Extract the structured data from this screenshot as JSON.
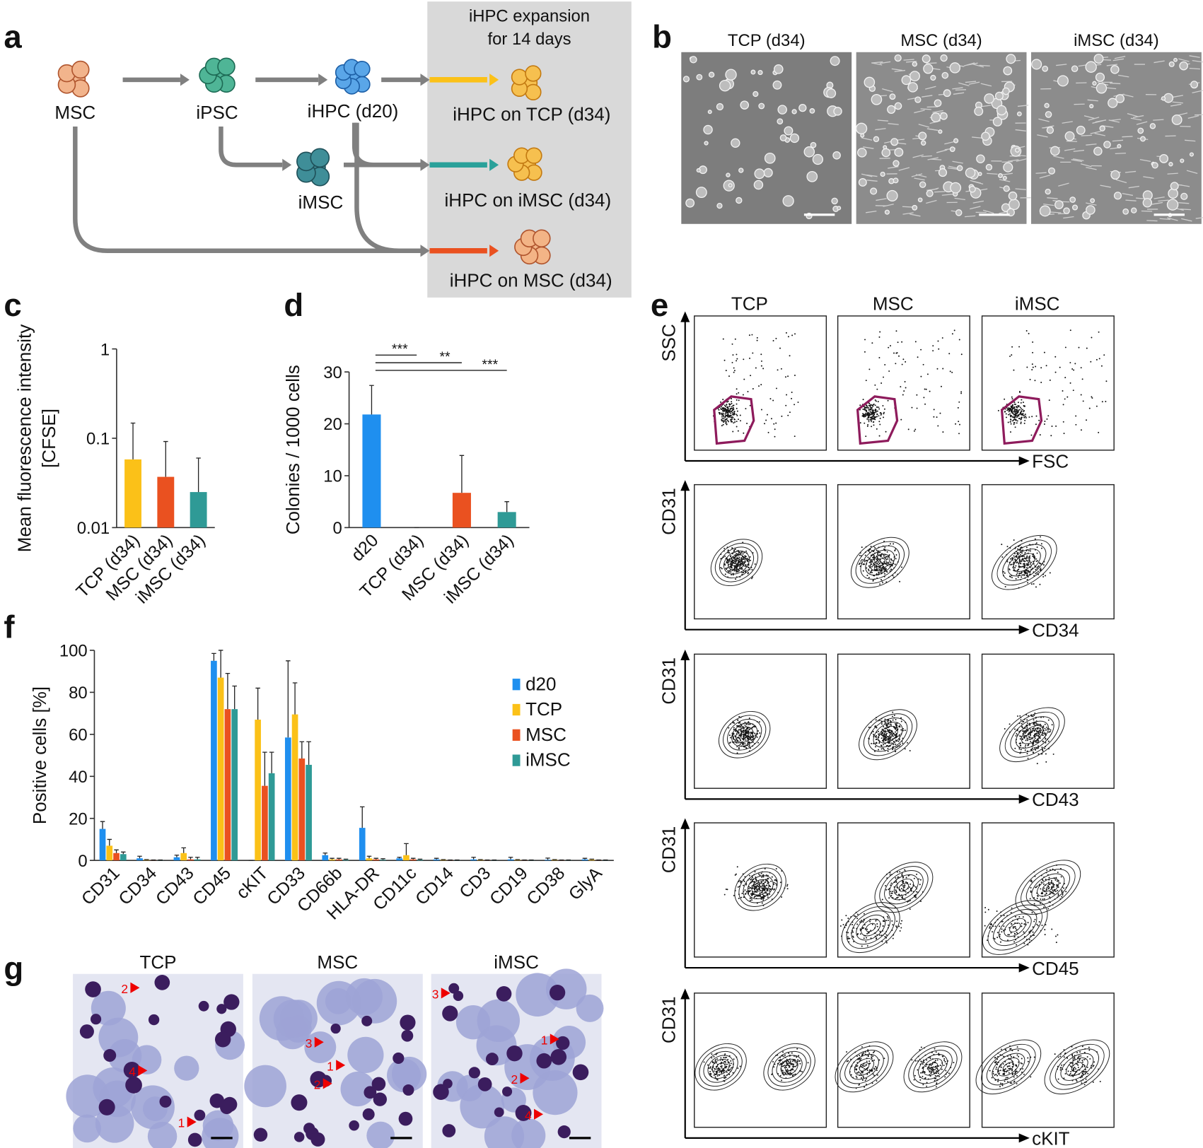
{
  "panel_labels": [
    "a",
    "b",
    "c",
    "d",
    "e",
    "f",
    "g"
  ],
  "diagram": {
    "box_title": [
      "iHPC expansion",
      "for 14 days"
    ],
    "nodes": [
      "MSC",
      "iPSC",
      "iHPC (d20)",
      "iMSC",
      "iHPC on TCP (d34)",
      "iHPC on iMSC (d34)",
      "iHPC on MSC (d34)"
    ]
  },
  "micrographs": {
    "titles": [
      "TCP (d34)",
      "MSC (d34)",
      "iMSC (d34)"
    ]
  },
  "flow": {
    "columns": [
      "TCP",
      "MSC",
      "iMSC"
    ],
    "rows": [
      {
        "y": "SSC",
        "x": "FSC"
      },
      {
        "y": "CD31",
        "x": "CD34"
      },
      {
        "y": "CD31",
        "x": "CD43"
      },
      {
        "y": "CD31",
        "x": "CD45"
      },
      {
        "y": "CD31",
        "x": "cKIT"
      }
    ]
  },
  "chart_data": [
    {
      "type": "bar",
      "ylabel": [
        "Mean fluorescence intensity",
        "[CFSE]"
      ],
      "log_scale": true,
      "categories": [
        "TCP (d34)",
        "MSC (d34)",
        "iMSC (d34)"
      ],
      "values": [
        0.058,
        0.037,
        0.025
      ],
      "errors": [
        0.09,
        0.055,
        0.035
      ],
      "colors": [
        "#fbc118",
        "#ea5120",
        "#2f9a96"
      ],
      "ylim": [
        0.01,
        1
      ],
      "yticks": [
        0.01,
        0.1,
        1
      ]
    },
    {
      "type": "bar",
      "ylabel": [
        "Colonies / 1000 cells"
      ],
      "categories": [
        "d20",
        "TCP (d34)",
        "MSC (d34)",
        "iMSC (d34)"
      ],
      "values": [
        21.8,
        0,
        6.7,
        3.0
      ],
      "errors": [
        5.6,
        0,
        7.2,
        2.0
      ],
      "colors": [
        "#1f8fef",
        "#fbc118",
        "#ea5120",
        "#2f9a96"
      ],
      "ylim": [
        0,
        30
      ],
      "yticks": [
        0,
        10,
        20,
        30
      ],
      "annotations": [
        "***",
        "**",
        "***"
      ]
    },
    {
      "type": "bar",
      "ylabel": [
        "Positive cells [%]"
      ],
      "legend": "upper right",
      "categories": [
        "CD31",
        "CD34",
        "CD43",
        "CD45",
        "cKIT",
        "CD33",
        "CD66b",
        "HLA-DR",
        "CD11c",
        "CD14",
        "CD3",
        "CD19",
        "CD38",
        "GlyA"
      ],
      "series": [
        {
          "name": "d20",
          "color": "#1f8fef",
          "values": [
            15,
            1,
            1.5,
            95,
            0,
            58.5,
            2.5,
            15.5,
            1,
            0.5,
            0.5,
            0.5,
            0.3,
            0.5
          ],
          "errors": [
            3.5,
            1,
            1,
            3.5,
            0,
            36.5,
            1,
            10,
            0.5,
            0.5,
            1,
            1,
            0.8,
            0.5
          ]
        },
        {
          "name": "TCP",
          "color": "#fbc118",
          "values": [
            7,
            0.2,
            3.5,
            87,
            67,
            69.5,
            0.5,
            1,
            2.5,
            0.2,
            0.2,
            0.2,
            0.2,
            0.3
          ],
          "errors": [
            3,
            0.2,
            2.5,
            13,
            15,
            15,
            0.5,
            1,
            5.5,
            0.2,
            0.2,
            0.2,
            0.2,
            0.3
          ]
        },
        {
          "name": "MSC",
          "color": "#ea5120",
          "values": [
            3.5,
            0.1,
            0.5,
            72,
            35.5,
            48.5,
            0.5,
            0.5,
            0.5,
            0.1,
            0.1,
            0.1,
            0.1,
            0.1
          ],
          "errors": [
            1.5,
            0.1,
            1,
            17,
            16,
            8,
            0.5,
            0.5,
            0.5,
            0.1,
            0.1,
            0.1,
            0.1,
            0.1
          ]
        },
        {
          "name": "iMSC",
          "color": "#2f9a96",
          "values": [
            3,
            0.1,
            0.5,
            72,
            41.5,
            45.5,
            0.3,
            0.3,
            0.3,
            0.1,
            0.1,
            0.1,
            0.1,
            0.1
          ],
          "errors": [
            1,
            0.1,
            1,
            11,
            10,
            11,
            0.3,
            0.5,
            0.3,
            0.1,
            0.1,
            0.1,
            0.1,
            0.1
          ]
        }
      ],
      "ylim": [
        0,
        100
      ],
      "yticks": [
        0,
        20,
        40,
        60,
        80,
        100
      ]
    }
  ],
  "cytospin": {
    "columns": [
      "TCP",
      "MSC",
      "iMSC"
    ],
    "markers": [
      [
        "2",
        "4",
        "1"
      ],
      [
        "3",
        "1",
        "2"
      ],
      [
        "3",
        "1",
        "2",
        "4"
      ]
    ]
  }
}
